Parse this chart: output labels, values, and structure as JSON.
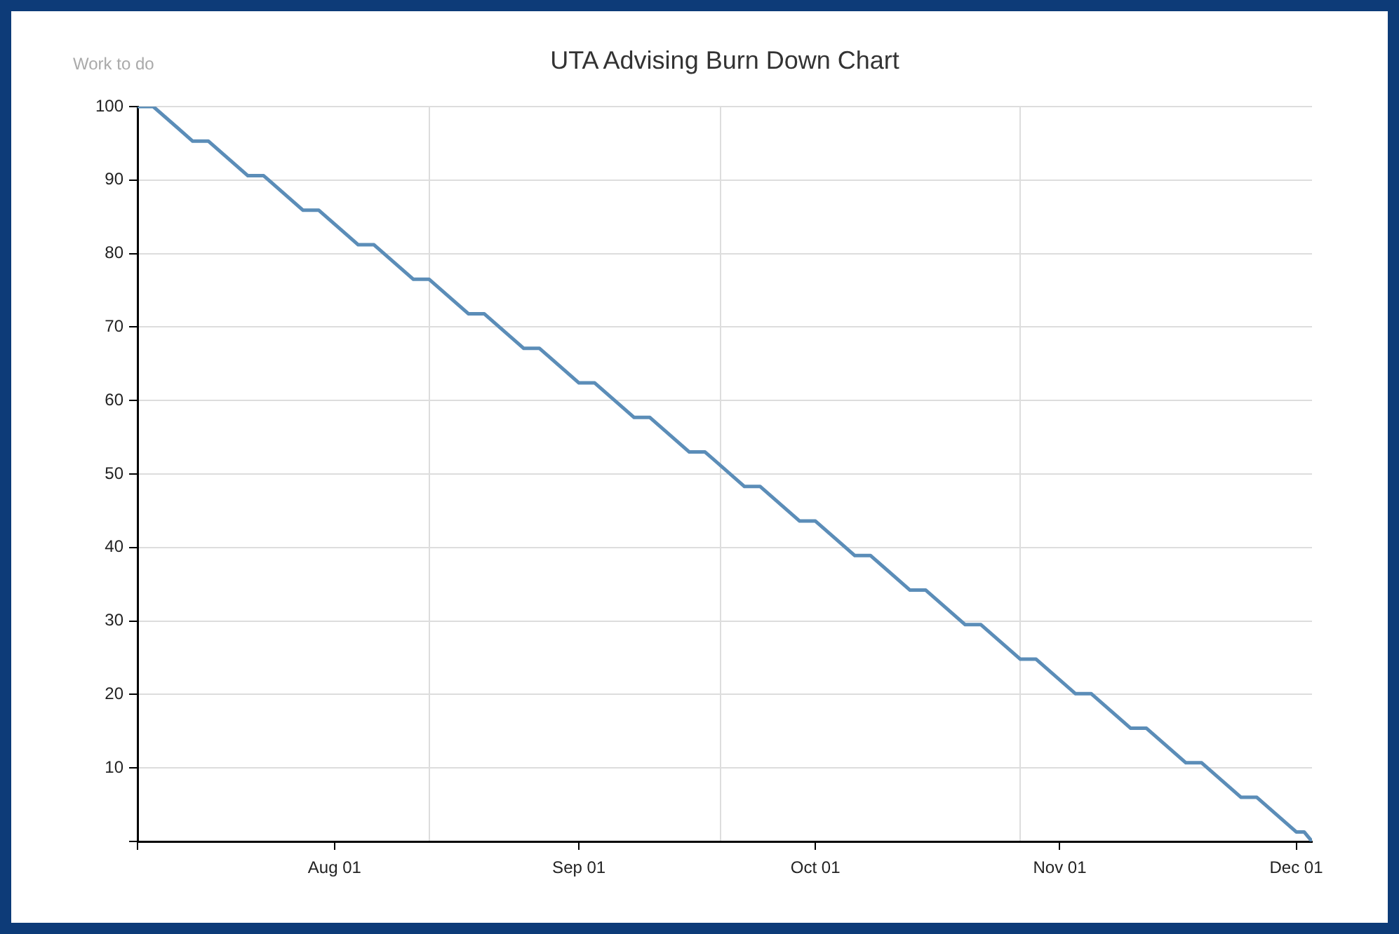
{
  "chart_data": {
    "type": "line",
    "title": "UTA Advising Burn Down Chart",
    "ylabel": "Work to do",
    "x": [
      "--07-07",
      "--07-09",
      "--07-14",
      "--07-16",
      "--07-21",
      "--07-23",
      "--07-28",
      "--07-30",
      "--08-04",
      "--08-06",
      "--08-11",
      "--08-13",
      "--08-18",
      "--08-20",
      "--08-25",
      "--08-27",
      "--09-01",
      "--09-03",
      "--09-08",
      "--09-10",
      "--09-15",
      "--09-17",
      "--09-22",
      "--09-24",
      "--09-29",
      "--10-01",
      "--10-06",
      "--10-08",
      "--10-13",
      "--10-15",
      "--10-20",
      "--10-22",
      "--10-27",
      "--10-29",
      "--11-03",
      "--11-05",
      "--11-10",
      "--11-12",
      "--11-17",
      "--11-19",
      "--11-24",
      "--11-26",
      "--12-01",
      "--12-02",
      "--12-03"
    ],
    "series": [
      {
        "color": "#5b8db8",
        "values": [
          100,
          100,
          95.3,
          95.3,
          90.6,
          90.6,
          85.9,
          85.9,
          81.2,
          81.2,
          76.5,
          76.5,
          71.8,
          71.8,
          67.1,
          67.1,
          62.4,
          62.4,
          57.7,
          57.7,
          53,
          53,
          48.3,
          48.3,
          43.6,
          43.6,
          38.9,
          38.9,
          34.2,
          34.2,
          29.5,
          29.5,
          24.8,
          24.8,
          20.1,
          20.1,
          15.4,
          15.4,
          10.7,
          10.7,
          6,
          6,
          1.3,
          1.3,
          0
        ]
      }
    ],
    "xlim": [
      "--07-07",
      "--12-03"
    ],
    "xticks": [
      {
        "value": "--07-07",
        "label": null
      },
      {
        "value": "--08-01",
        "label": "Aug 01"
      },
      {
        "value": "--08-13",
        "label": null
      },
      {
        "value": "--09-01",
        "label": "Sep 01"
      },
      {
        "value": "--09-19",
        "label": null
      },
      {
        "value": "--10-01",
        "label": "Oct 01"
      },
      {
        "value": "--10-27",
        "label": null
      },
      {
        "value": "--11-01",
        "label": "Nov 01"
      },
      {
        "value": "--12-01",
        "label": "Dec 01"
      }
    ],
    "ylim": [
      0,
      100
    ],
    "yticks": [
      {
        "value": 0,
        "label": null
      },
      10,
      20,
      30,
      40,
      50,
      60,
      70,
      80,
      90,
      100
    ],
    "grid": true,
    "legend": false,
    "marker": "none",
    "line_style": "solid"
  }
}
